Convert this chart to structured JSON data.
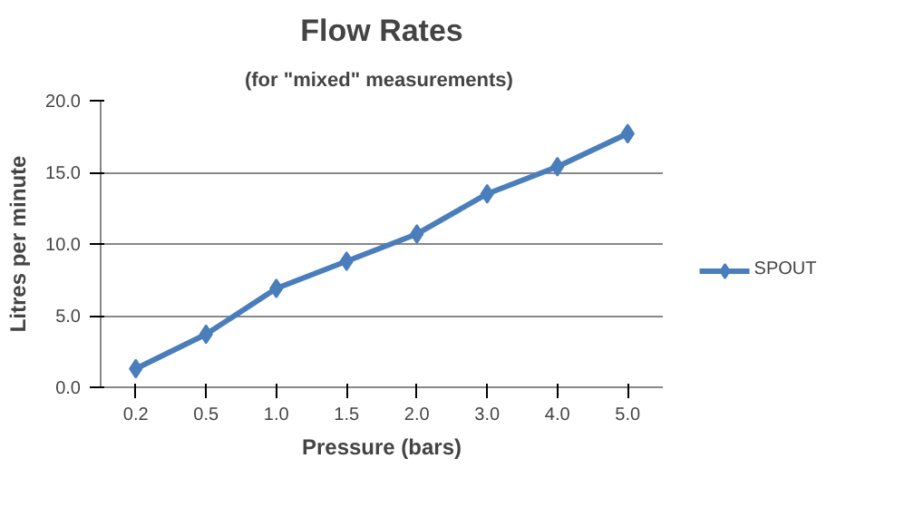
{
  "chart_data": {
    "type": "line",
    "title": "Flow Rates",
    "subtitle": "(for \"mixed\"  measurements)",
    "xlabel": "Pressure (bars)",
    "ylabel": "Litres per minute",
    "categories": [
      "0.2",
      "0.5",
      "1.0",
      "1.5",
      "2.0",
      "3.0",
      "4.0",
      "5.0"
    ],
    "series": [
      {
        "name": "SPOUT",
        "color": "#4a7ebb",
        "values": [
          1.3,
          3.7,
          6.9,
          8.8,
          10.7,
          13.5,
          15.4,
          17.7
        ]
      }
    ],
    "ylim": [
      0,
      20
    ],
    "yticks": [
      {
        "value": 0,
        "label": "0.0"
      },
      {
        "value": 5,
        "label": "5.0"
      },
      {
        "value": 10,
        "label": "10.0"
      },
      {
        "value": 15,
        "label": "15.0"
      },
      {
        "value": 20,
        "label": "20.0"
      }
    ],
    "grid": "y",
    "legend": "right",
    "marker": "diamond",
    "line_style": "solid"
  }
}
